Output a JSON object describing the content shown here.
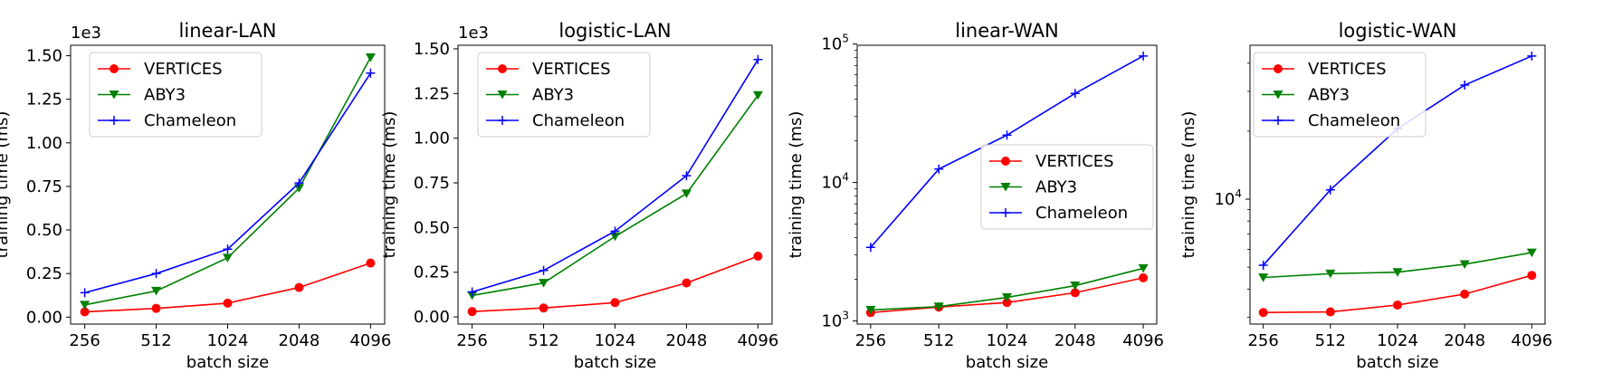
{
  "colors": {
    "VERTICES": "#ff0000",
    "ABY3": "#008000",
    "Chameleon": "#0000ff"
  },
  "chart_data": [
    {
      "type": "line",
      "title": "linear-LAN",
      "xlabel": "batch size",
      "ylabel": "training time (ms)",
      "scale": "linear",
      "offset_text": "1e3",
      "categories": [
        "256",
        "512",
        "1024",
        "2048",
        "4096"
      ],
      "ylim": [
        -0.04,
        1.56
      ],
      "yticks": [
        0.0,
        0.25,
        0.5,
        0.75,
        1.0,
        1.25,
        1.5
      ],
      "ytick_labels": [
        "0.00",
        "0.25",
        "0.50",
        "0.75",
        "1.00",
        "1.25",
        "1.50"
      ],
      "legend_loc": "upper-left",
      "series": [
        {
          "name": "VERTICES",
          "marker": "circle",
          "values": [
            0.03,
            0.05,
            0.08,
            0.17,
            0.31
          ]
        },
        {
          "name": "ABY3",
          "marker": "triangle-down",
          "values": [
            0.07,
            0.15,
            0.34,
            0.74,
            1.49
          ]
        },
        {
          "name": "Chameleon",
          "marker": "plus",
          "values": [
            0.14,
            0.25,
            0.39,
            0.77,
            1.4
          ]
        }
      ]
    },
    {
      "type": "line",
      "title": "logistic-LAN",
      "xlabel": "batch size",
      "ylabel": "training time (ms)",
      "scale": "linear",
      "offset_text": "1e3",
      "categories": [
        "256",
        "512",
        "1024",
        "2048",
        "4096"
      ],
      "ylim": [
        -0.04,
        1.52
      ],
      "yticks": [
        0.0,
        0.25,
        0.5,
        0.75,
        1.0,
        1.25,
        1.5
      ],
      "ytick_labels": [
        "0.00",
        "0.25",
        "0.50",
        "0.75",
        "1.00",
        "1.25",
        "1.50"
      ],
      "legend_loc": "upper-left",
      "series": [
        {
          "name": "VERTICES",
          "marker": "circle",
          "values": [
            0.03,
            0.05,
            0.08,
            0.19,
            0.34
          ]
        },
        {
          "name": "ABY3",
          "marker": "triangle-down",
          "values": [
            0.12,
            0.19,
            0.45,
            0.69,
            1.24
          ]
        },
        {
          "name": "Chameleon",
          "marker": "plus",
          "values": [
            0.14,
            0.26,
            0.48,
            0.79,
            1.44
          ]
        }
      ]
    },
    {
      "type": "line",
      "title": "linear-WAN",
      "xlabel": "batch size",
      "ylabel": "training time (ms)",
      "scale": "log",
      "categories": [
        "256",
        "512",
        "1024",
        "2048",
        "4096"
      ],
      "ylim": [
        950,
        98000
      ],
      "major_ticks": [
        1000,
        10000,
        100000
      ],
      "major_tick_labels": [
        {
          "base": "10",
          "exp": "3"
        },
        {
          "base": "10",
          "exp": "4"
        },
        {
          "base": "10",
          "exp": "5"
        }
      ],
      "legend_loc": "center-right",
      "series": [
        {
          "name": "VERTICES",
          "marker": "circle",
          "values": [
            1150,
            1260,
            1360,
            1600,
            2050
          ]
        },
        {
          "name": "ABY3",
          "marker": "triangle-down",
          "values": [
            1200,
            1270,
            1480,
            1800,
            2400
          ]
        },
        {
          "name": "Chameleon",
          "marker": "plus",
          "values": [
            3400,
            12500,
            22000,
            44000,
            82000
          ]
        }
      ]
    },
    {
      "type": "line",
      "title": "logistic-WAN",
      "xlabel": "batch size",
      "ylabel": "training time (ms)",
      "scale": "log",
      "categories": [
        "256",
        "512",
        "1024",
        "2048",
        "4096"
      ],
      "ylim": [
        2800,
        48000
      ],
      "major_ticks": [
        10000
      ],
      "major_tick_labels": [
        {
          "base": "10",
          "exp": "4"
        }
      ],
      "legend_loc": "upper-left",
      "series": [
        {
          "name": "VERTICES",
          "marker": "circle",
          "values": [
            3150,
            3170,
            3400,
            3800,
            4600
          ]
        },
        {
          "name": "ABY3",
          "marker": "triangle-down",
          "values": [
            4500,
            4680,
            4750,
            5150,
            5800
          ]
        },
        {
          "name": "Chameleon",
          "marker": "plus",
          "values": [
            5100,
            11000,
            20500,
            32000,
            43000
          ]
        }
      ]
    }
  ]
}
